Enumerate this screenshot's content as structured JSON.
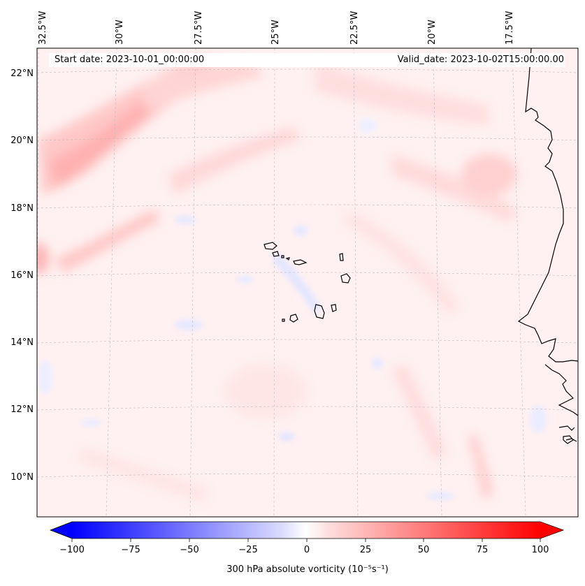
{
  "map": {
    "start_date": "Start date: 2023-10-01_00:00:00",
    "valid_date": "Valid_date: 2023-10-02T15:00:00.00",
    "longitude_labels": [
      "32.5°W",
      "30°W",
      "27.5°W",
      "25°W",
      "22.5°W",
      "20°W",
      "17.5°W"
    ],
    "latitude_labels": [
      "22°N",
      "20°N",
      "18°N",
      "16°N",
      "14°N",
      "12°N",
      "10°N"
    ],
    "field": "300 hPa absolute vorticity"
  },
  "colorbar": {
    "label": "300 hPa absolute vorticity (10⁻⁵s⁻¹)",
    "ticks": [
      "−100",
      "−75",
      "−50",
      "−25",
      "0",
      "25",
      "50",
      "75",
      "100"
    ],
    "min": -100,
    "max": 100,
    "low_color": "#0000ff",
    "mid_color": "#ffffff",
    "high_color": "#ff0000"
  }
}
